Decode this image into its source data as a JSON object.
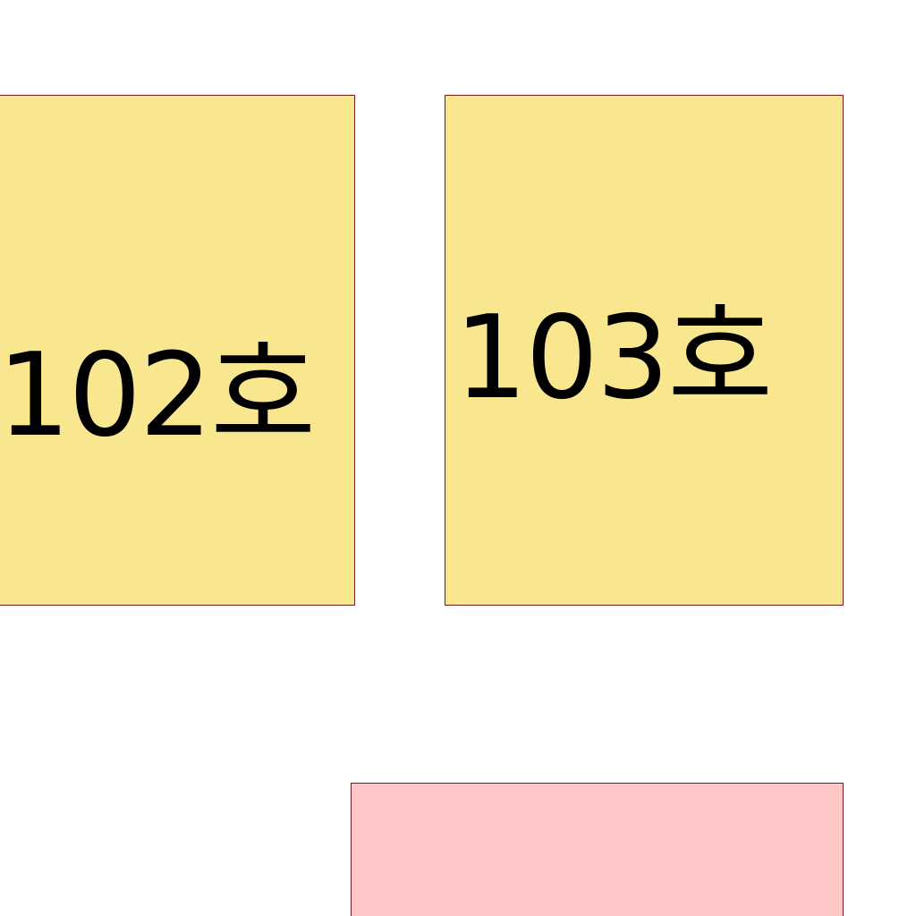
{
  "rooms": [
    {
      "label": "102호",
      "fill": "#f8e78f"
    },
    {
      "label": "103호",
      "fill": "#f8e78f"
    }
  ],
  "areas": [
    {
      "label": "",
      "fill": "#fec8c9"
    }
  ],
  "border_color": "#7a1c1c"
}
